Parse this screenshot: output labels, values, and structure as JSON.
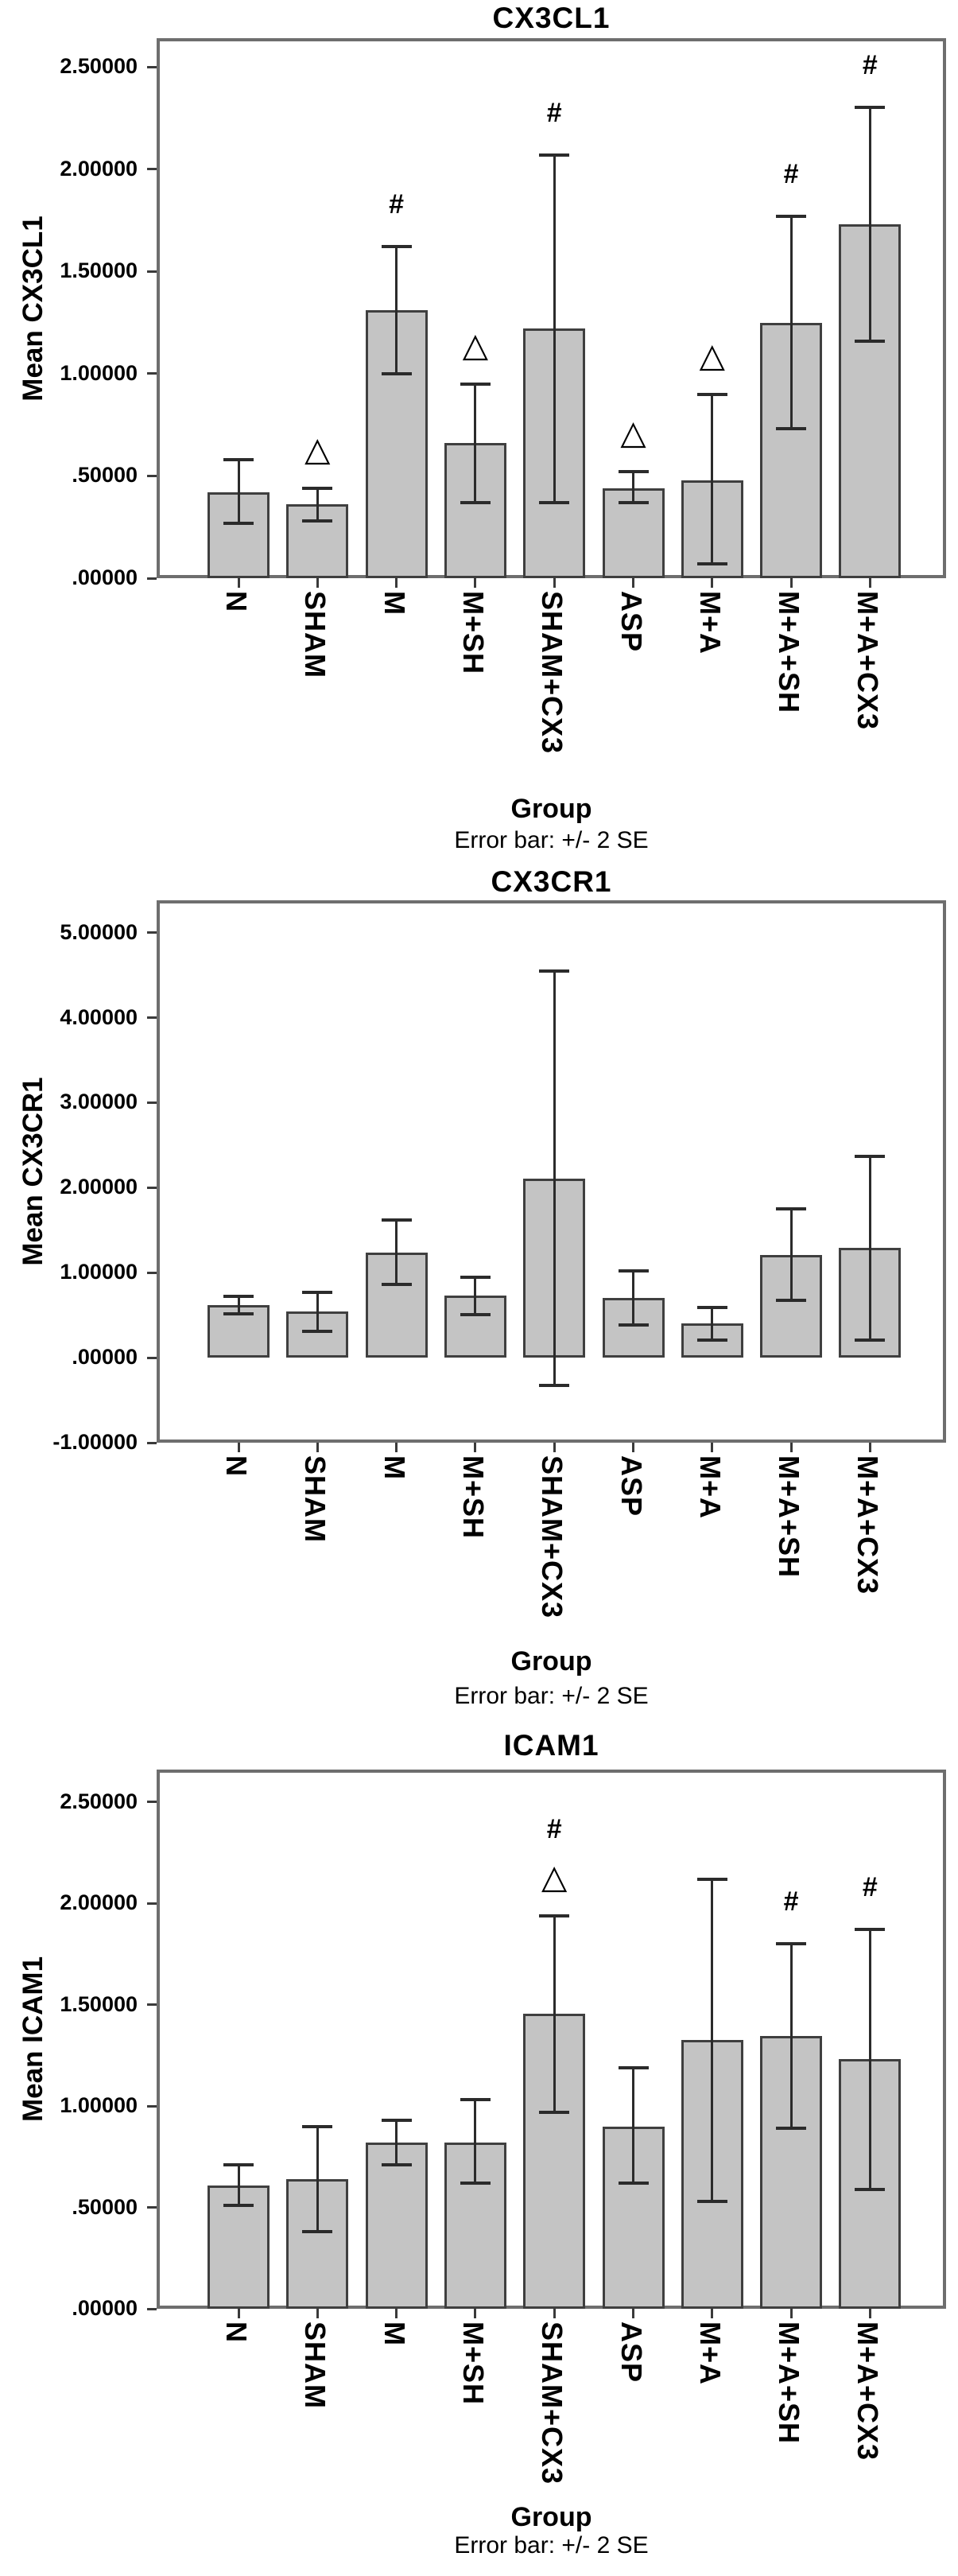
{
  "style": {
    "background": "#ffffff",
    "bar_fill": "#c4c4c4",
    "bar_border": "#3f3f3f",
    "error_bar_color": "#2b2b2b",
    "frame_color": "#6e6e6e",
    "text_color": "#000000"
  },
  "annotation_symbols": {
    "hash": "#",
    "triangle": "△"
  },
  "chart_data": [
    {
      "type": "bar",
      "title": "CX3CL1",
      "ylabel": "Mean CX3CL1",
      "xlabel": "Group",
      "caption": "Error bar: +/- 2 SE",
      "y_min": 0,
      "y_max": 2.64,
      "grid": false,
      "y_ticks": [
        {
          "value": 0.0,
          "label": ".00000"
        },
        {
          "value": 0.5,
          "label": ".50000"
        },
        {
          "value": 1.0,
          "label": "1.00000"
        },
        {
          "value": 1.5,
          "label": "1.50000"
        },
        {
          "value": 2.0,
          "label": "2.00000"
        },
        {
          "value": 2.5,
          "label": "2.50000"
        }
      ],
      "categories": [
        "N",
        "SHAM",
        "M",
        "M+SH",
        "SHAM+CX3",
        "ASP",
        "M+A",
        "M+A+SH",
        "M+A+CX3"
      ],
      "bars": [
        {
          "category": "N",
          "mean": 0.42,
          "err_low": 0.27,
          "err_high": 0.58,
          "annotations": []
        },
        {
          "category": "SHAM",
          "mean": 0.36,
          "err_low": 0.28,
          "err_high": 0.44,
          "annotations": [
            "triangle"
          ]
        },
        {
          "category": "M",
          "mean": 1.31,
          "err_low": 1.0,
          "err_high": 1.62,
          "annotations": [
            "hash"
          ]
        },
        {
          "category": "M+SH",
          "mean": 0.66,
          "err_low": 0.37,
          "err_high": 0.95,
          "annotations": [
            "triangle"
          ]
        },
        {
          "category": "SHAM+CX3",
          "mean": 1.22,
          "err_low": 0.37,
          "err_high": 2.07,
          "annotations": [
            "hash"
          ]
        },
        {
          "category": "ASP",
          "mean": 0.44,
          "err_low": 0.37,
          "err_high": 0.52,
          "annotations": [
            "triangle"
          ]
        },
        {
          "category": "M+A",
          "mean": 0.48,
          "err_low": 0.07,
          "err_high": 0.9,
          "annotations": [
            "triangle"
          ]
        },
        {
          "category": "M+A+SH",
          "mean": 1.25,
          "err_low": 0.73,
          "err_high": 1.77,
          "annotations": [
            "hash"
          ]
        },
        {
          "category": "M+A+CX3",
          "mean": 1.73,
          "err_low": 1.16,
          "err_high": 2.3,
          "annotations": [
            "hash"
          ]
        }
      ]
    },
    {
      "type": "bar",
      "title": "CX3CR1",
      "ylabel": "Mean CX3CR1",
      "xlabel": "Group",
      "caption": "Error bar: +/- 2 SE",
      "y_min": -1,
      "y_max": 5.38,
      "grid": false,
      "y_ticks": [
        {
          "value": -1.0,
          "label": "-1.00000"
        },
        {
          "value": 0.0,
          "label": ".00000"
        },
        {
          "value": 1.0,
          "label": "1.00000"
        },
        {
          "value": 2.0,
          "label": "2.00000"
        },
        {
          "value": 3.0,
          "label": "3.00000"
        },
        {
          "value": 4.0,
          "label": "4.00000"
        },
        {
          "value": 5.0,
          "label": "5.00000"
        }
      ],
      "categories": [
        "N",
        "SHAM",
        "M",
        "M+SH",
        "SHAM+CX3",
        "ASP",
        "M+A",
        "M+A+SH",
        "M+A+CX3"
      ],
      "bars": [
        {
          "category": "N",
          "mean": 0.62,
          "err_low": 0.52,
          "err_high": 0.72,
          "annotations": []
        },
        {
          "category": "SHAM",
          "mean": 0.54,
          "err_low": 0.31,
          "err_high": 0.77,
          "annotations": []
        },
        {
          "category": "M",
          "mean": 1.24,
          "err_low": 0.86,
          "err_high": 1.62,
          "annotations": []
        },
        {
          "category": "M+SH",
          "mean": 0.73,
          "err_low": 0.51,
          "err_high": 0.95,
          "annotations": []
        },
        {
          "category": "SHAM+CX3",
          "mean": 2.11,
          "err_low": -0.33,
          "err_high": 4.55,
          "annotations": []
        },
        {
          "category": "ASP",
          "mean": 0.7,
          "err_low": 0.38,
          "err_high": 1.02,
          "annotations": []
        },
        {
          "category": "M+A",
          "mean": 0.4,
          "err_low": 0.21,
          "err_high": 0.59,
          "annotations": []
        },
        {
          "category": "M+A+SH",
          "mean": 1.21,
          "err_low": 0.67,
          "err_high": 1.75,
          "annotations": []
        },
        {
          "category": "M+A+CX3",
          "mean": 1.29,
          "err_low": 0.21,
          "err_high": 2.37,
          "annotations": []
        }
      ]
    },
    {
      "type": "bar",
      "title": "ICAM1",
      "ylabel": "Mean ICAM1",
      "xlabel": "Group",
      "caption": "Error bar: +/- 2 SE",
      "y_min": 0,
      "y_max": 2.66,
      "grid": false,
      "y_ticks": [
        {
          "value": 0.0,
          "label": ".00000"
        },
        {
          "value": 0.5,
          "label": ".50000"
        },
        {
          "value": 1.0,
          "label": "1.00000"
        },
        {
          "value": 1.5,
          "label": "1.50000"
        },
        {
          "value": 2.0,
          "label": "2.00000"
        },
        {
          "value": 2.5,
          "label": "2.50000"
        }
      ],
      "categories": [
        "N",
        "SHAM",
        "M",
        "M+SH",
        "SHAM+CX3",
        "ASP",
        "M+A",
        "M+A+SH",
        "M+A+CX3"
      ],
      "bars": [
        {
          "category": "N",
          "mean": 0.61,
          "err_low": 0.51,
          "err_high": 0.71,
          "annotations": []
        },
        {
          "category": "SHAM",
          "mean": 0.64,
          "err_low": 0.38,
          "err_high": 0.9,
          "annotations": []
        },
        {
          "category": "M",
          "mean": 0.82,
          "err_low": 0.71,
          "err_high": 0.93,
          "annotations": []
        },
        {
          "category": "M+SH",
          "mean": 0.82,
          "err_low": 0.62,
          "err_high": 1.03,
          "annotations": []
        },
        {
          "category": "SHAM+CX3",
          "mean": 1.455,
          "err_low": 0.97,
          "err_high": 1.94,
          "annotations": [
            "triangle",
            "hash"
          ]
        },
        {
          "category": "ASP",
          "mean": 0.9,
          "err_low": 0.62,
          "err_high": 1.19,
          "annotations": []
        },
        {
          "category": "M+A",
          "mean": 1.325,
          "err_low": 0.53,
          "err_high": 2.12,
          "annotations": []
        },
        {
          "category": "M+A+SH",
          "mean": 1.345,
          "err_low": 0.89,
          "err_high": 1.8,
          "annotations": [
            "hash"
          ]
        },
        {
          "category": "M+A+CX3",
          "mean": 1.23,
          "err_low": 0.59,
          "err_high": 1.87,
          "annotations": [
            "hash"
          ]
        }
      ]
    }
  ]
}
